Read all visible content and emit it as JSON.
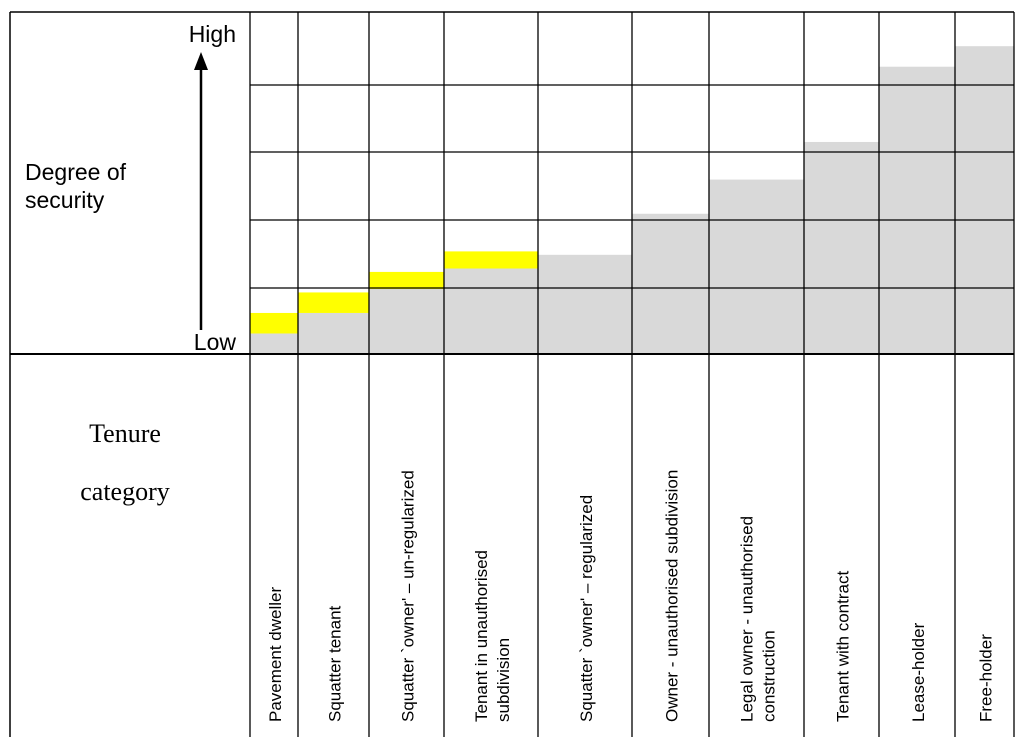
{
  "chart_data": {
    "type": "bar",
    "ylabel": "Degree of security",
    "y_high_label": "High",
    "y_low_label": "Low",
    "xlabel_line1": "Tenure",
    "xlabel_line2": "category",
    "ylim": [
      0,
      5
    ],
    "grid": true,
    "categories": [
      {
        "label": "Pavement dweller",
        "lines": [
          "Pavement dweller"
        ]
      },
      {
        "label": "Squatter tenant",
        "lines": [
          "Squatter tenant"
        ]
      },
      {
        "label": "Squatter `owner' – un-regularized",
        "lines": [
          "Squatter `owner' – un-regularized"
        ]
      },
      {
        "label": "Tenant in unauthorised subdivision",
        "lines": [
          "Tenant in unauthorised",
          "subdivision"
        ]
      },
      {
        "label": "Squatter `owner' – regularized",
        "lines": [
          "Squatter `owner' – regularized"
        ]
      },
      {
        "label": "Owner - unauthorised subdivision",
        "lines": [
          "Owner - unauthorised subdivision"
        ]
      },
      {
        "label": "Legal owner - unauthorised construction",
        "lines": [
          "Legal owner - unauthorised",
          "construction"
        ]
      },
      {
        "label": "Tenant with contract",
        "lines": [
          "Tenant with contract"
        ]
      },
      {
        "label": "Lease-holder",
        "lines": [
          "Lease-holder"
        ]
      },
      {
        "label": "Free-holder",
        "lines": [
          "Free-holder"
        ]
      }
    ],
    "series": [
      {
        "values": [
          0.3,
          0.6,
          0.95,
          1.25,
          1.45,
          2.05,
          2.55,
          3.1,
          4.2,
          4.5
        ],
        "color": "#d9d9d9"
      },
      {
        "values": [
          0.3,
          0.3,
          0.25,
          0.25,
          0,
          0,
          0,
          0,
          0,
          0
        ],
        "color": "#ffff00"
      }
    ]
  }
}
